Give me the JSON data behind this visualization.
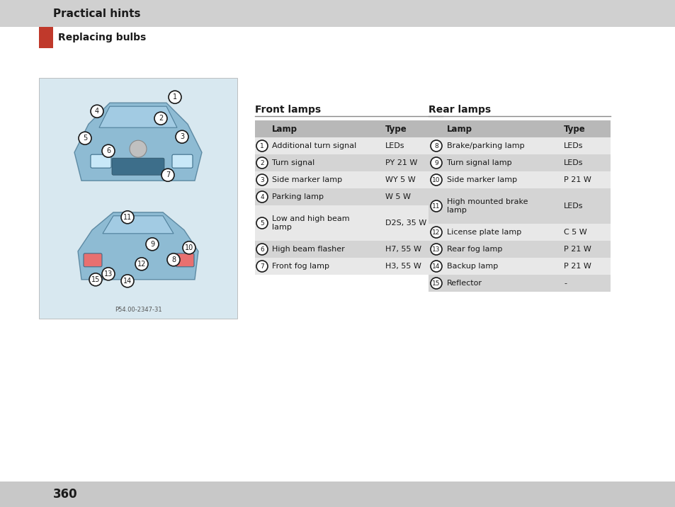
{
  "page_bg": "#ffffff",
  "header_bg": "#d0d0d0",
  "footer_bg": "#c8c8c8",
  "header_text": "Practical hints",
  "subheader_text": "Replacing bulbs",
  "subheader_bar_color": "#c0392b",
  "page_number": "360",
  "front_lamps_title": "Front lamps",
  "rear_lamps_title": "Rear lamps",
  "front_table_header": [
    "Lamp",
    "Type"
  ],
  "front_table_rows": [
    [
      "1",
      "Additional turn signal",
      "LEDs"
    ],
    [
      "2",
      "Turn signal",
      "PY 21 W"
    ],
    [
      "3",
      "Side marker lamp",
      "WY 5 W"
    ],
    [
      "4",
      "Parking lamp",
      "W 5 W"
    ],
    [
      "5",
      "Low and high beam\nlamp",
      "D2S, 35 W"
    ],
    [
      "6",
      "High beam flasher",
      "H7, 55 W"
    ],
    [
      "7",
      "Front fog lamp",
      "H3, 55 W"
    ]
  ],
  "rear_table_header": [
    "Lamp",
    "Type"
  ],
  "rear_table_rows": [
    [
      "8",
      "Brake/parking lamp",
      "LEDs"
    ],
    [
      "9",
      "Turn signal lamp",
      "LEDs"
    ],
    [
      "10",
      "Side marker lamp",
      "P 21 W"
    ],
    [
      "11",
      "High mounted brake\nlamp",
      "LEDs"
    ],
    [
      "12",
      "License plate lamp",
      "C 5 W"
    ],
    [
      "13",
      "Rear fog lamp",
      "P 21 W"
    ],
    [
      "14",
      "Backup lamp",
      "P 21 W"
    ],
    [
      "15",
      "Reflector",
      "-"
    ]
  ],
  "table_header_bg": "#b8b8b8",
  "table_row_bg_light": "#e8e8e8",
  "table_row_bg_dark": "#d4d4d4",
  "image_placeholder_bg": "#d8e8f0",
  "image_caption": "P54.00-2347-31"
}
